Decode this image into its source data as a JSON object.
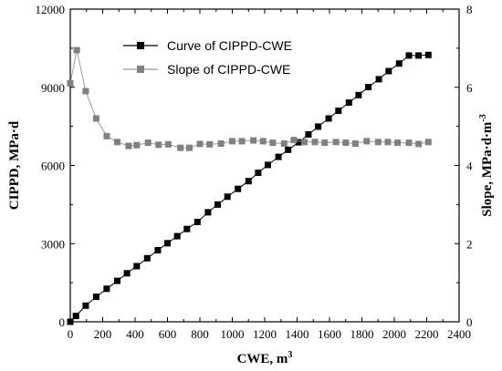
{
  "chart_data": {
    "type": "line",
    "x_axis": {
      "label_main": "CWE, m",
      "label_sup": "3",
      "range": [
        0,
        2400
      ],
      "ticks": [
        "0",
        "200",
        "400",
        "600",
        "800",
        "1000",
        "1200",
        "1400",
        "1600",
        "1800",
        "2000",
        "2200",
        "2400"
      ]
    },
    "y_axis_left": {
      "label_main": "CIPPD, MPa·d",
      "range": [
        0,
        12000
      ],
      "ticks": [
        "0",
        "3000",
        "6000",
        "9000",
        "12000"
      ]
    },
    "y_axis_right": {
      "label_main": "Slope, MPa·d·m",
      "label_sup": "-3",
      "range": [
        0,
        8
      ],
      "ticks": [
        "0",
        "2",
        "4",
        "6",
        "8"
      ]
    },
    "grid": false,
    "legend_position": "top-center",
    "series": [
      {
        "name": "Curve of CIPPD-CWE",
        "axis": "left",
        "color": "#000000",
        "marker": "square",
        "x": [
          0,
          35,
          95,
          160,
          225,
          290,
          350,
          410,
          475,
          540,
          600,
          660,
          720,
          785,
          850,
          910,
          970,
          1035,
          1100,
          1160,
          1220,
          1285,
          1345,
          1410,
          1470,
          1530,
          1595,
          1655,
          1720,
          1780,
          1840,
          1905,
          1965,
          2030,
          2090,
          2150,
          2210
        ],
        "y": [
          0,
          225,
          620,
          960,
          1265,
          1570,
          1860,
          2135,
          2440,
          2745,
          3015,
          3285,
          3560,
          3830,
          4200,
          4500,
          4800,
          5100,
          5400,
          5720,
          6020,
          6330,
          6600,
          6890,
          7190,
          7490,
          7800,
          8100,
          8410,
          8700,
          9010,
          9310,
          9620,
          9910,
          10220,
          10220,
          10240
        ]
      },
      {
        "name": "Slope of CIPPD-CWE",
        "axis": "right",
        "color": "#808080",
        "marker": "square",
        "x": [
          0,
          40,
          95,
          160,
          225,
          290,
          360,
          410,
          480,
          545,
          605,
          680,
          735,
          800,
          860,
          930,
          1000,
          1060,
          1130,
          1190,
          1250,
          1320,
          1380,
          1445,
          1510,
          1570,
          1640,
          1700,
          1760,
          1830,
          1900,
          1960,
          2020,
          2090,
          2150,
          2210
        ],
        "y": [
          6.1,
          6.95,
          5.9,
          5.2,
          4.75,
          4.6,
          4.5,
          4.52,
          4.58,
          4.53,
          4.54,
          4.45,
          4.45,
          4.55,
          4.54,
          4.56,
          4.62,
          4.62,
          4.64,
          4.62,
          4.58,
          4.56,
          4.65,
          4.6,
          4.6,
          4.58,
          4.6,
          4.58,
          4.56,
          4.62,
          4.6,
          4.6,
          4.58,
          4.58,
          4.55,
          4.6
        ]
      }
    ]
  }
}
